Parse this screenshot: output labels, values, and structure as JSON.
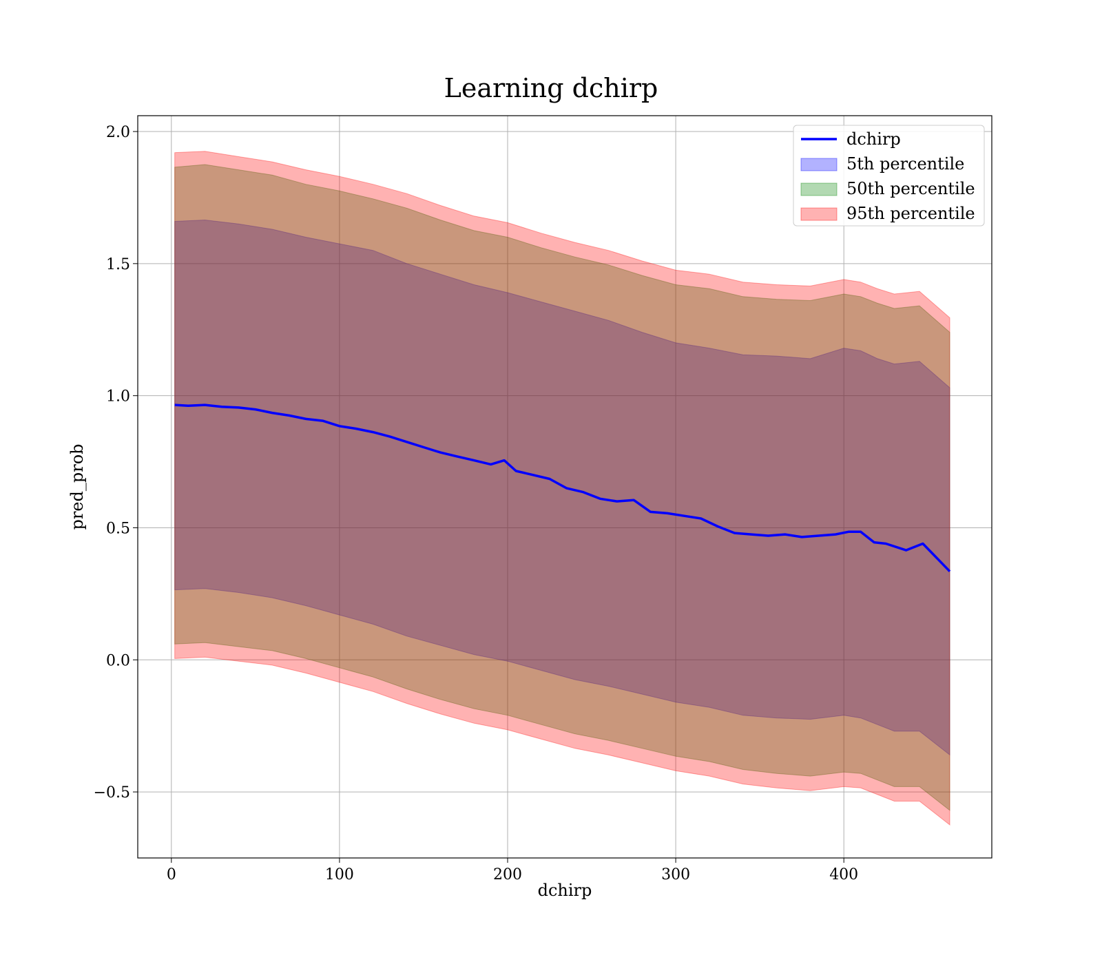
{
  "chart_data": {
    "type": "line",
    "title": "Learning dchirp",
    "xlabel": "dchirp",
    "ylabel": "pred_prob",
    "xlim": [
      -20,
      488
    ],
    "ylim": [
      -0.75,
      2.06
    ],
    "xticks": [
      0,
      100,
      200,
      300,
      400
    ],
    "xtick_labels": [
      "0",
      "100",
      "200",
      "300",
      "400"
    ],
    "yticks": [
      -0.5,
      0.0,
      0.5,
      1.0,
      1.5,
      2.0
    ],
    "ytick_labels": [
      "−0.5",
      "0.0",
      "0.5",
      "1.0",
      "1.5",
      "2.0"
    ],
    "grid": true,
    "legend_position": "top-right",
    "line": {
      "name": "dchirp",
      "color": "#0000ff",
      "x": [
        2,
        10,
        20,
        30,
        40,
        50,
        60,
        70,
        80,
        90,
        100,
        110,
        120,
        130,
        140,
        150,
        160,
        170,
        180,
        190,
        198,
        205,
        215,
        225,
        235,
        245,
        255,
        265,
        275,
        285,
        295,
        305,
        315,
        325,
        335,
        345,
        355,
        365,
        375,
        385,
        395,
        403,
        410,
        418,
        425,
        437,
        447,
        463
      ],
      "y": [
        0.965,
        0.962,
        0.965,
        0.958,
        0.955,
        0.948,
        0.935,
        0.925,
        0.912,
        0.905,
        0.885,
        0.875,
        0.862,
        0.845,
        0.825,
        0.805,
        0.785,
        0.77,
        0.755,
        0.74,
        0.755,
        0.715,
        0.7,
        0.685,
        0.65,
        0.635,
        0.61,
        0.6,
        0.605,
        0.56,
        0.555,
        0.545,
        0.535,
        0.505,
        0.48,
        0.475,
        0.47,
        0.475,
        0.465,
        0.47,
        0.475,
        0.485,
        0.485,
        0.445,
        0.44,
        0.415,
        0.44,
        0.335
      ]
    },
    "bands": [
      {
        "name": "5th percentile",
        "color": "#0000ff",
        "alpha": 0.3,
        "x": [
          2,
          20,
          40,
          60,
          80,
          100,
          120,
          140,
          160,
          180,
          200,
          220,
          240,
          260,
          280,
          300,
          320,
          340,
          360,
          380,
          400,
          410,
          420,
          430,
          445,
          463
        ],
        "upper": [
          1.66,
          1.665,
          1.65,
          1.63,
          1.6,
          1.575,
          1.55,
          1.5,
          1.46,
          1.42,
          1.39,
          1.355,
          1.32,
          1.285,
          1.24,
          1.2,
          1.18,
          1.155,
          1.15,
          1.14,
          1.18,
          1.17,
          1.14,
          1.12,
          1.13,
          1.03
        ],
        "lower": [
          0.265,
          0.27,
          0.255,
          0.235,
          0.205,
          0.17,
          0.135,
          0.09,
          0.055,
          0.02,
          -0.005,
          -0.04,
          -0.075,
          -0.1,
          -0.13,
          -0.16,
          -0.18,
          -0.21,
          -0.22,
          -0.225,
          -0.21,
          -0.22,
          -0.245,
          -0.27,
          -0.27,
          -0.36
        ]
      },
      {
        "name": "50th percentile",
        "color": "#008000",
        "alpha": 0.3,
        "x": [
          2,
          20,
          40,
          60,
          80,
          100,
          120,
          140,
          160,
          180,
          200,
          220,
          240,
          260,
          280,
          300,
          320,
          340,
          360,
          380,
          400,
          410,
          420,
          430,
          445,
          463
        ],
        "upper": [
          1.865,
          1.875,
          1.855,
          1.835,
          1.8,
          1.775,
          1.745,
          1.71,
          1.665,
          1.625,
          1.6,
          1.56,
          1.525,
          1.495,
          1.455,
          1.42,
          1.405,
          1.375,
          1.365,
          1.36,
          1.385,
          1.375,
          1.35,
          1.33,
          1.34,
          1.24
        ],
        "lower": [
          0.06,
          0.065,
          0.05,
          0.035,
          0.005,
          -0.03,
          -0.065,
          -0.11,
          -0.15,
          -0.185,
          -0.21,
          -0.245,
          -0.28,
          -0.305,
          -0.335,
          -0.365,
          -0.385,
          -0.415,
          -0.43,
          -0.44,
          -0.425,
          -0.43,
          -0.455,
          -0.48,
          -0.48,
          -0.57
        ]
      },
      {
        "name": "95th percentile",
        "color": "#ff0000",
        "alpha": 0.3,
        "x": [
          2,
          20,
          40,
          60,
          80,
          100,
          120,
          140,
          160,
          180,
          200,
          220,
          240,
          260,
          280,
          300,
          320,
          340,
          360,
          380,
          400,
          410,
          420,
          430,
          445,
          463
        ],
        "upper": [
          1.92,
          1.925,
          1.905,
          1.885,
          1.855,
          1.83,
          1.8,
          1.765,
          1.72,
          1.68,
          1.655,
          1.615,
          1.58,
          1.55,
          1.51,
          1.475,
          1.46,
          1.43,
          1.42,
          1.415,
          1.44,
          1.43,
          1.405,
          1.385,
          1.395,
          1.295
        ],
        "lower": [
          0.005,
          0.01,
          -0.005,
          -0.02,
          -0.05,
          -0.085,
          -0.12,
          -0.165,
          -0.205,
          -0.24,
          -0.265,
          -0.3,
          -0.335,
          -0.36,
          -0.39,
          -0.42,
          -0.44,
          -0.47,
          -0.485,
          -0.495,
          -0.48,
          -0.485,
          -0.51,
          -0.535,
          -0.535,
          -0.625
        ]
      }
    ]
  }
}
